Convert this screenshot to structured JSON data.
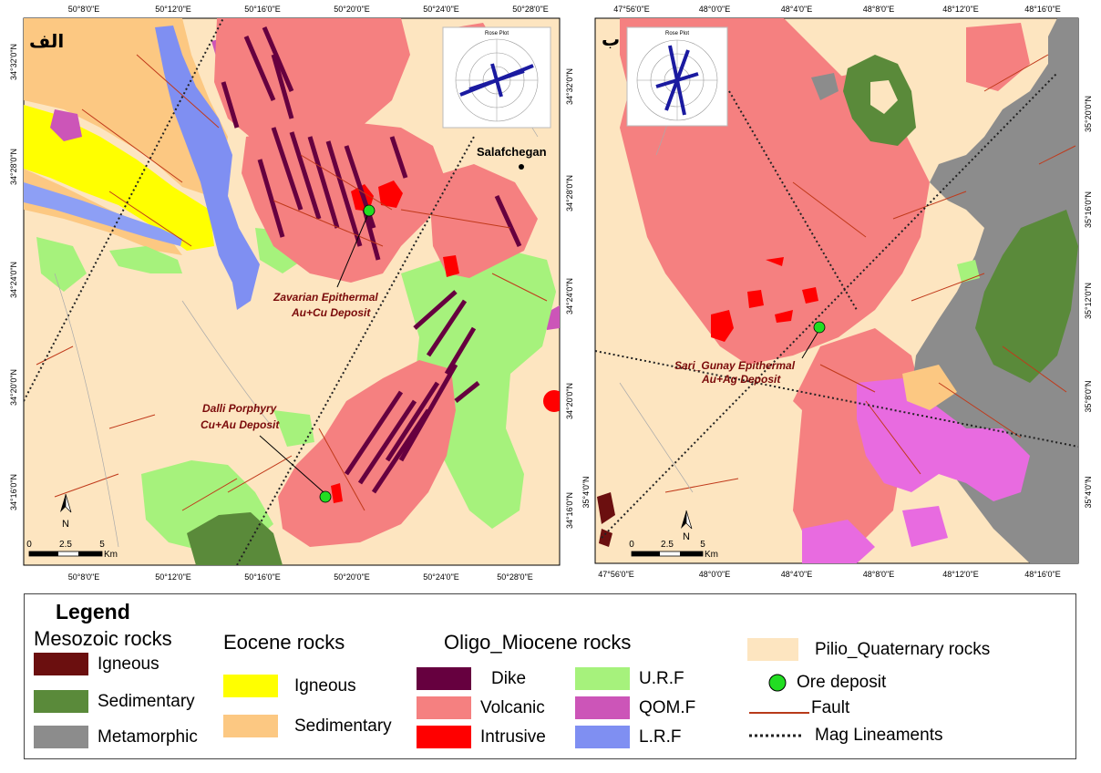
{
  "map_a": {
    "panel_label": "الف",
    "top_ticks": [
      "50°8'0\"E",
      "50°12'0\"E",
      "50°16'0\"E",
      "50°20'0\"E",
      "50°24'0\"E",
      "50°28'0\"E"
    ],
    "bottom_ticks": [
      "50°8'0\"E",
      "50°12'0\"E",
      "50°16'0\"E",
      "50°20'0\"E",
      "50°24'0\"E",
      "50°28'0\"E"
    ],
    "left_ticks": [
      "34°32'0\"N",
      "34°28'0\"N",
      "34°24'0\"N",
      "34°20'0\"N",
      "34°16'0\"N"
    ],
    "right_ticks": [
      "34°32'0\"N",
      "34°28'0\"N",
      "34°24'0\"N",
      "34°20'0\"N",
      "34°16'0\"N"
    ],
    "town": "Salafchegan",
    "deposit_1": [
      "Zavarian Epithermal",
      "Au+Cu Deposit"
    ],
    "deposit_2": [
      "Dalli Porphyry",
      "Cu+Au Deposit"
    ],
    "scale": {
      "labels": [
        "0",
        "2.5",
        "5"
      ],
      "unit": "Km"
    },
    "north": "N",
    "rose_title": "Rose Plot"
  },
  "map_b": {
    "panel_label": "ب",
    "top_ticks": [
      "47°56'0\"E",
      "48°0'0\"E",
      "48°4'0\"E",
      "48°8'0\"E",
      "48°12'0\"E",
      "48°16'0\"E"
    ],
    "bottom_ticks": [
      "47°56'0\"E",
      "48°0'0\"E",
      "48°4'0\"E",
      "48°8'0\"E",
      "48°12'0\"E",
      "48°16'0\"E"
    ],
    "right_ticks": [
      "35°20'0\"N",
      "35°16'0\"N",
      "35°12'0\"N",
      "35°8'0\"N",
      "35°4'0\"N"
    ],
    "left_ticks": [
      "35°4'0\"N"
    ],
    "deposit": [
      "Sari_Gunay Epithermal",
      "Au+Ag Deposit"
    ],
    "scale": {
      "labels": [
        "0",
        "2.5",
        "5"
      ],
      "unit": "Km"
    },
    "north": "N",
    "rose_title": "Rose Plot"
  },
  "legend": {
    "title": "Legend",
    "groups": {
      "mesozoic": "Mesozoic rocks",
      "eocene": "Eocene rocks",
      "oligo": "Oligo_Miocene rocks"
    },
    "items": {
      "mz_igneous": {
        "label": "Igneous",
        "color": "#6b0f0f"
      },
      "mz_sedimentary": {
        "label": "Sedimentary",
        "color": "#5a8a3a"
      },
      "mz_metamorphic": {
        "label": "Metamorphic",
        "color": "#8c8c8c"
      },
      "eo_igneous": {
        "label": "Igneous",
        "color": "#ffff00"
      },
      "eo_sedimentary": {
        "label": "Sedimentary",
        "color": "#fcc882"
      },
      "om_dike": {
        "label": "Dike",
        "color": "#66003f"
      },
      "om_volcanic": {
        "label": "Volcanic",
        "color": "#f58080"
      },
      "om_intrusive": {
        "label": "Intrusive",
        "color": "#ff0000"
      },
      "om_urf": {
        "label": "U.R.F",
        "color": "#a6f27c"
      },
      "om_qomf": {
        "label": "QOM.F",
        "color": "#cc55b8"
      },
      "om_lrf": {
        "label": "L.R.F",
        "color": "#7f8ff2"
      },
      "pilio": {
        "label": "Pilio_Quaternary rocks",
        "color": "#fde5c0"
      },
      "ore": {
        "label": "Ore deposit",
        "color": "#22dd22"
      },
      "fault": {
        "label": "Fault",
        "color": "#b83a1a"
      },
      "mag": {
        "label": "Mag Lineaments",
        "color": "#222222"
      }
    }
  }
}
